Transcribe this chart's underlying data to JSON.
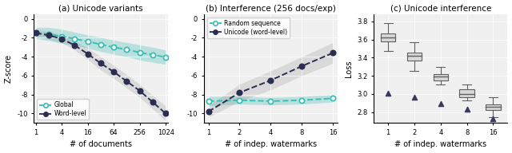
{
  "panel_a": {
    "title": "(a) Unicode variants",
    "xlabel": "# of documents",
    "ylabel": "Z-score",
    "xvals": [
      1,
      2,
      4,
      8,
      16,
      32,
      64,
      128,
      256,
      512,
      1024
    ],
    "xtick_vals": [
      1,
      4,
      16,
      64,
      256,
      1024
    ],
    "global_mean": [
      -1.5,
      -1.6,
      -1.85,
      -2.1,
      -2.4,
      -2.7,
      -3.0,
      -3.25,
      -3.55,
      -3.8,
      -4.05
    ],
    "global_low": [
      -0.9,
      -0.9,
      -1.1,
      -1.4,
      -1.7,
      -1.95,
      -2.25,
      -2.5,
      -2.75,
      -3.0,
      -3.3
    ],
    "global_high": [
      -2.1,
      -2.3,
      -2.6,
      -2.8,
      -3.1,
      -3.45,
      -3.75,
      -4.0,
      -4.35,
      -4.6,
      -4.8
    ],
    "word_mean": [
      -1.5,
      -1.75,
      -2.1,
      -2.8,
      -3.7,
      -4.7,
      -5.6,
      -6.6,
      -7.6,
      -8.8,
      -10.0
    ],
    "word_low": [
      -1.1,
      -1.35,
      -1.7,
      -2.3,
      -3.1,
      -4.0,
      -4.9,
      -5.9,
      -6.9,
      -8.1,
      -9.2
    ],
    "word_high": [
      -1.9,
      -2.15,
      -2.5,
      -3.3,
      -4.3,
      -5.4,
      -6.3,
      -7.3,
      -8.3,
      -9.5,
      -10.8
    ],
    "ylim": [
      -11,
      0.5
    ],
    "yticks": [
      0,
      -2,
      -4,
      -6,
      -8,
      -10
    ],
    "color_global": "#3dbdb5",
    "color_word": "#2b2d52",
    "legend_labels": [
      "Global",
      "Word-level"
    ]
  },
  "panel_b": {
    "title": "(b) Interference (256 docs/exp)",
    "xlabel": "# of indep. watermarks",
    "xvals": [
      1,
      2,
      4,
      8,
      16
    ],
    "random_mean": [
      -8.7,
      -8.6,
      -8.7,
      -8.6,
      -8.4
    ],
    "random_low": [
      -9.2,
      -9.0,
      -9.1,
      -9.0,
      -8.8
    ],
    "random_high": [
      -8.2,
      -8.2,
      -8.3,
      -8.2,
      -8.0
    ],
    "unicode_mean": [
      -9.8,
      -7.8,
      -6.5,
      -5.0,
      -3.6
    ],
    "unicode_low": [
      -10.4,
      -8.7,
      -7.5,
      -6.0,
      -4.7
    ],
    "unicode_high": [
      -9.2,
      -6.9,
      -5.5,
      -4.0,
      -2.5
    ],
    "ylim": [
      -11,
      0.5
    ],
    "yticks": [
      0,
      -2,
      -4,
      -6,
      -8,
      -10
    ],
    "color_random": "#3dbdb5",
    "color_unicode": "#2b2d52",
    "legend_labels": [
      "Random sequence",
      "Unicode (word-level)"
    ]
  },
  "panel_c": {
    "title": "(c) Unicode interference",
    "xlabel": "# of indep. watermarks",
    "ylabel": "Loss",
    "xvals": [
      1,
      2,
      4,
      8,
      16
    ],
    "box_q1": [
      3.58,
      3.37,
      3.15,
      2.96,
      2.82
    ],
    "box_q3": [
      3.67,
      3.46,
      3.22,
      3.05,
      2.88
    ],
    "box_median": [
      3.62,
      3.42,
      3.19,
      3.0,
      2.855
    ],
    "box_whislo": [
      3.47,
      3.25,
      3.1,
      2.93,
      2.74
    ],
    "box_whishi": [
      3.78,
      3.57,
      3.3,
      3.1,
      2.96
    ],
    "triangle_y": [
      3.01,
      2.96,
      2.89,
      2.83,
      2.73
    ],
    "ylim": [
      2.68,
      3.88
    ],
    "yticks": [
      2.8,
      3.0,
      3.2,
      3.4,
      3.6,
      3.8
    ],
    "box_facecolor": "#d8d8d8",
    "box_edgecolor": "#606060",
    "triangle_color": "#3a3a5c"
  },
  "axes_bg": "#f0f0f0",
  "fig_bg": "#ffffff"
}
